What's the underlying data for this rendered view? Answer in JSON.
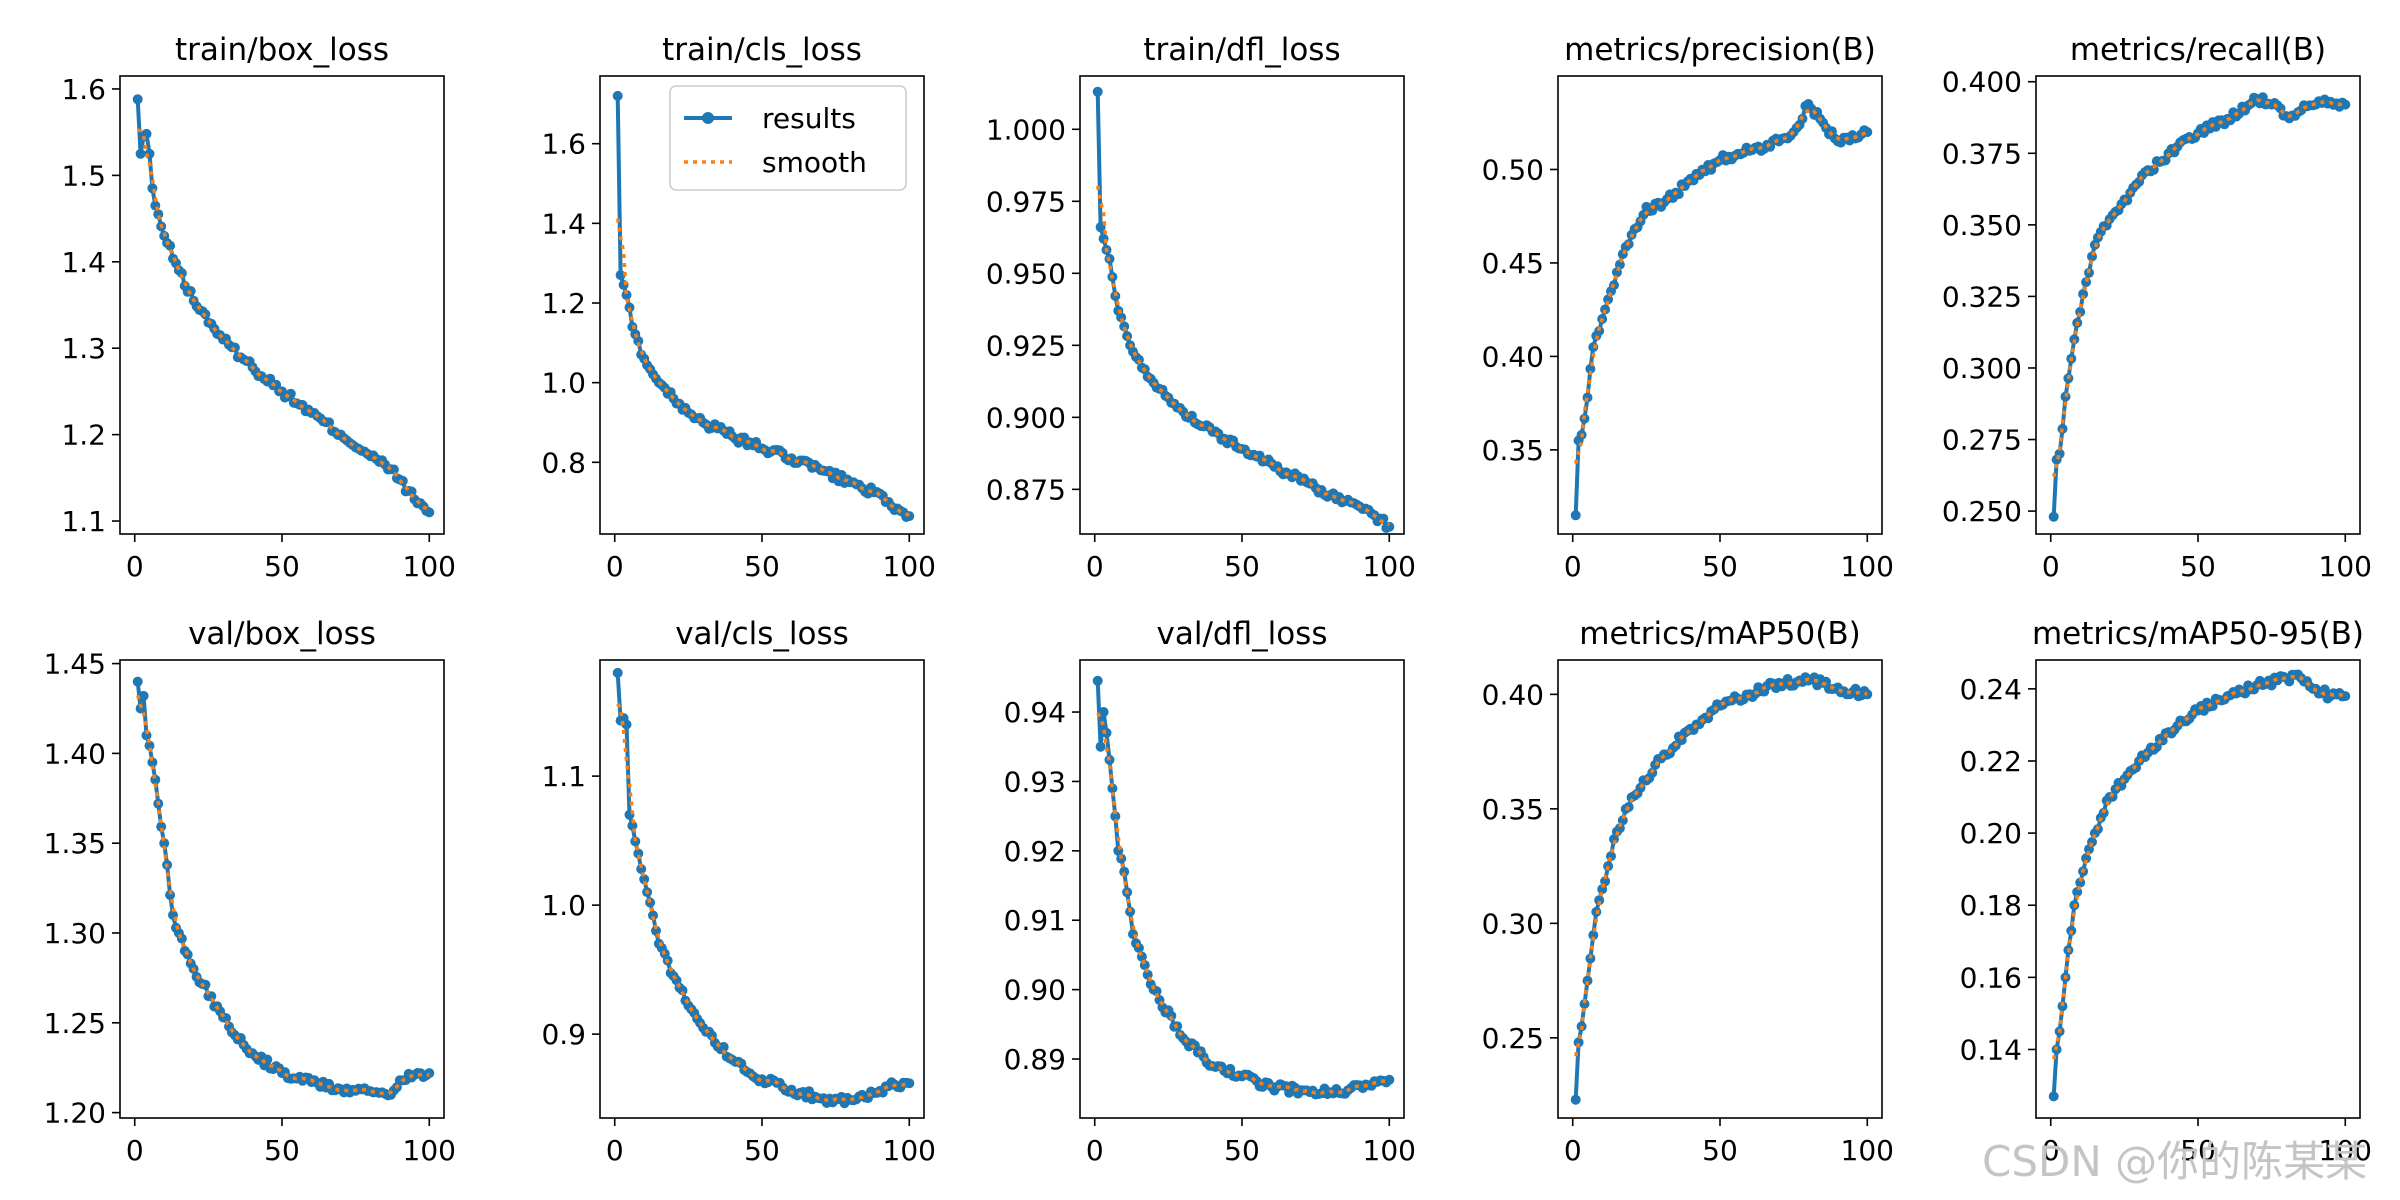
{
  "watermark": "CSDN @你的陈某某",
  "legend": {
    "results_label": "results",
    "smooth_label": "smooth"
  },
  "colors": {
    "results": "#1f77b4",
    "smooth": "#ff7f0e",
    "axis": "#000000"
  },
  "chart_data": [
    {
      "type": "line",
      "title": "train/box_loss",
      "xlim": [
        -5,
        105
      ],
      "ylim": [
        1.085,
        1.615
      ],
      "xticks": [
        0,
        50,
        100
      ],
      "yticks": [
        1.1,
        1.2,
        1.3,
        1.4,
        1.5,
        1.6
      ],
      "ytick_labels": [
        "1.1",
        "1.2",
        "1.3",
        "1.4",
        "1.5",
        "1.6"
      ],
      "legend": false,
      "series": [
        {
          "name": "results",
          "anchors": [
            [
              1,
              1.588
            ],
            [
              2,
              1.525
            ],
            [
              3,
              1.545
            ],
            [
              4,
              1.548
            ],
            [
              5,
              1.525
            ],
            [
              6,
              1.485
            ],
            [
              7,
              1.465
            ],
            [
              10,
              1.43
            ],
            [
              15,
              1.39
            ],
            [
              20,
              1.355
            ],
            [
              30,
              1.31
            ],
            [
              40,
              1.278
            ],
            [
              50,
              1.25
            ],
            [
              60,
              1.225
            ],
            [
              70,
              1.2
            ],
            [
              80,
              1.175
            ],
            [
              87,
              1.16
            ],
            [
              90,
              1.148
            ],
            [
              95,
              1.125
            ],
            [
              100,
              1.11
            ]
          ]
        }
      ]
    },
    {
      "type": "line",
      "title": "train/cls_loss",
      "xlim": [
        -5,
        105
      ],
      "ylim": [
        0.62,
        1.77
      ],
      "xticks": [
        0,
        50,
        100
      ],
      "yticks": [
        0.8,
        1.0,
        1.2,
        1.4,
        1.6
      ],
      "ytick_labels": [
        "0.8",
        "1.0",
        "1.2",
        "1.4",
        "1.6"
      ],
      "legend": true,
      "series": [
        {
          "name": "results",
          "anchors": [
            [
              1,
              1.72
            ],
            [
              2,
              1.27
            ],
            [
              4,
              1.22
            ],
            [
              6,
              1.14
            ],
            [
              10,
              1.06
            ],
            [
              15,
              1.0
            ],
            [
              20,
              0.96
            ],
            [
              30,
              0.9
            ],
            [
              40,
              0.865
            ],
            [
              50,
              0.835
            ],
            [
              60,
              0.81
            ],
            [
              70,
              0.78
            ],
            [
              80,
              0.75
            ],
            [
              88,
              0.725
            ],
            [
              92,
              0.7
            ],
            [
              95,
              0.68
            ],
            [
              100,
              0.665
            ]
          ]
        }
      ]
    },
    {
      "type": "line",
      "title": "train/dfl_loss",
      "xlim": [
        -5,
        105
      ],
      "ylim": [
        0.8595,
        1.0185
      ],
      "xticks": [
        0,
        50,
        100
      ],
      "yticks": [
        0.875,
        0.9,
        0.925,
        0.95,
        0.975,
        1.0
      ],
      "ytick_labels": [
        "0.875",
        "0.900",
        "0.925",
        "0.950",
        "0.975",
        "1.000"
      ],
      "legend": false,
      "series": [
        {
          "name": "results",
          "anchors": [
            [
              1,
              1.013
            ],
            [
              2,
              0.966
            ],
            [
              3,
              0.962
            ],
            [
              5,
              0.955
            ],
            [
              8,
              0.937
            ],
            [
              12,
              0.925
            ],
            [
              15,
              0.92
            ],
            [
              20,
              0.912
            ],
            [
              30,
              0.902
            ],
            [
              40,
              0.895
            ],
            [
              50,
              0.889
            ],
            [
              60,
              0.884
            ],
            [
              70,
              0.878
            ],
            [
              80,
              0.873
            ],
            [
              90,
              0.869
            ],
            [
              95,
              0.866
            ],
            [
              100,
              0.862
            ]
          ]
        }
      ]
    },
    {
      "type": "line",
      "title": "metrics/precision(B)",
      "xlim": [
        -5,
        105
      ],
      "ylim": [
        0.305,
        0.55
      ],
      "xticks": [
        0,
        50,
        100
      ],
      "yticks": [
        0.35,
        0.4,
        0.45,
        0.5
      ],
      "ytick_labels": [
        "0.35",
        "0.40",
        "0.45",
        "0.50"
      ],
      "legend": false,
      "series": [
        {
          "name": "results",
          "anchors": [
            [
              1,
              0.315
            ],
            [
              2,
              0.355
            ],
            [
              3,
              0.358
            ],
            [
              5,
              0.378
            ],
            [
              7,
              0.405
            ],
            [
              10,
              0.42
            ],
            [
              15,
              0.445
            ],
            [
              20,
              0.465
            ],
            [
              25,
              0.48
            ],
            [
              30,
              0.48
            ],
            [
              40,
              0.495
            ],
            [
              50,
              0.505
            ],
            [
              60,
              0.51
            ],
            [
              70,
              0.515
            ],
            [
              75,
              0.52
            ],
            [
              80,
              0.535
            ],
            [
              85,
              0.525
            ],
            [
              90,
              0.515
            ],
            [
              100,
              0.52
            ]
          ]
        }
      ]
    },
    {
      "type": "line",
      "title": "metrics/recall(B)",
      "xlim": [
        -5,
        105
      ],
      "ylim": [
        0.242,
        0.402
      ],
      "xticks": [
        0,
        50,
        100
      ],
      "yticks": [
        0.25,
        0.275,
        0.3,
        0.325,
        0.35,
        0.375,
        0.4
      ],
      "ytick_labels": [
        "0.250",
        "0.275",
        "0.300",
        "0.325",
        "0.350",
        "0.375",
        "0.400"
      ],
      "legend": false,
      "series": [
        {
          "name": "results",
          "anchors": [
            [
              1,
              0.248
            ],
            [
              2,
              0.268
            ],
            [
              3,
              0.27
            ],
            [
              5,
              0.29
            ],
            [
              8,
              0.31
            ],
            [
              12,
              0.33
            ],
            [
              15,
              0.343
            ],
            [
              20,
              0.352
            ],
            [
              30,
              0.365
            ],
            [
              40,
              0.375
            ],
            [
              50,
              0.382
            ],
            [
              60,
              0.387
            ],
            [
              70,
              0.394
            ],
            [
              75,
              0.392
            ],
            [
              80,
              0.388
            ],
            [
              85,
              0.39
            ],
            [
              90,
              0.392
            ],
            [
              95,
              0.393
            ],
            [
              100,
              0.392
            ]
          ]
        }
      ]
    },
    {
      "type": "line",
      "title": "val/box_loss",
      "xlim": [
        -5,
        105
      ],
      "ylim": [
        1.197,
        1.452
      ],
      "xticks": [
        0,
        50,
        100
      ],
      "yticks": [
        1.2,
        1.25,
        1.3,
        1.35,
        1.4,
        1.45
      ],
      "ytick_labels": [
        "1.20",
        "1.25",
        "1.30",
        "1.35",
        "1.40",
        "1.45"
      ],
      "legend": false,
      "series": [
        {
          "name": "results",
          "anchors": [
            [
              1,
              1.44
            ],
            [
              2,
              1.425
            ],
            [
              3,
              1.432
            ],
            [
              4,
              1.41
            ],
            [
              6,
              1.395
            ],
            [
              8,
              1.372
            ],
            [
              10,
              1.35
            ],
            [
              13,
              1.31
            ],
            [
              15,
              1.3
            ],
            [
              20,
              1.28
            ],
            [
              30,
              1.253
            ],
            [
              40,
              1.233
            ],
            [
              50,
              1.222
            ],
            [
              60,
              1.217
            ],
            [
              70,
              1.213
            ],
            [
              80,
              1.212
            ],
            [
              87,
              1.21
            ],
            [
              90,
              1.218
            ],
            [
              95,
              1.221
            ],
            [
              100,
              1.222
            ]
          ]
        }
      ]
    },
    {
      "type": "line",
      "title": "val/cls_loss",
      "xlim": [
        -5,
        105
      ],
      "ylim": [
        0.835,
        1.19
      ],
      "xticks": [
        0,
        50,
        100
      ],
      "yticks": [
        0.9,
        1.0,
        1.1
      ],
      "ytick_labels": [
        "0.9",
        "1.0",
        "1.1"
      ],
      "legend": false,
      "series": [
        {
          "name": "results",
          "anchors": [
            [
              1,
              1.18
            ],
            [
              2,
              1.143
            ],
            [
              3,
              1.145
            ],
            [
              4,
              1.14
            ],
            [
              5,
              1.07
            ],
            [
              8,
              1.04
            ],
            [
              10,
              1.02
            ],
            [
              15,
              0.97
            ],
            [
              20,
              0.945
            ],
            [
              30,
              0.905
            ],
            [
              40,
              0.88
            ],
            [
              50,
              0.865
            ],
            [
              60,
              0.857
            ],
            [
              70,
              0.85
            ],
            [
              80,
              0.849
            ],
            [
              85,
              0.851
            ],
            [
              90,
              0.856
            ],
            [
              95,
              0.861
            ],
            [
              100,
              0.862
            ]
          ]
        }
      ]
    },
    {
      "type": "line",
      "title": "val/dfl_loss",
      "xlim": [
        -5,
        105
      ],
      "ylim": [
        0.8815,
        0.9475
      ],
      "xticks": [
        0,
        50,
        100
      ],
      "yticks": [
        0.89,
        0.9,
        0.91,
        0.92,
        0.93,
        0.94
      ],
      "ytick_labels": [
        "0.89",
        "0.90",
        "0.91",
        "0.92",
        "0.93",
        "0.94"
      ],
      "legend": false,
      "series": [
        {
          "name": "results",
          "anchors": [
            [
              1,
              0.9445
            ],
            [
              2,
              0.935
            ],
            [
              3,
              0.94
            ],
            [
              4,
              0.937
            ],
            [
              6,
              0.929
            ],
            [
              8,
              0.92
            ],
            [
              10,
              0.917
            ],
            [
              13,
              0.908
            ],
            [
              15,
              0.906
            ],
            [
              20,
              0.9
            ],
            [
              30,
              0.893
            ],
            [
              40,
              0.889
            ],
            [
              50,
              0.8875
            ],
            [
              60,
              0.886
            ],
            [
              70,
              0.8855
            ],
            [
              80,
              0.8852
            ],
            [
              85,
              0.885
            ],
            [
              90,
              0.8862
            ],
            [
              95,
              0.8868
            ],
            [
              100,
              0.887
            ]
          ]
        }
      ]
    },
    {
      "type": "line",
      "title": "metrics/mAP50(B)",
      "xlim": [
        -5,
        105
      ],
      "ylim": [
        0.215,
        0.415
      ],
      "xticks": [
        0,
        50,
        100
      ],
      "yticks": [
        0.25,
        0.3,
        0.35,
        0.4
      ],
      "ytick_labels": [
        "0.25",
        "0.30",
        "0.35",
        "0.40"
      ],
      "legend": false,
      "series": [
        {
          "name": "results",
          "anchors": [
            [
              1,
              0.223
            ],
            [
              2,
              0.248
            ],
            [
              3,
              0.255
            ],
            [
              5,
              0.275
            ],
            [
              8,
              0.305
            ],
            [
              12,
              0.325
            ],
            [
              15,
              0.34
            ],
            [
              20,
              0.355
            ],
            [
              30,
              0.372
            ],
            [
              40,
              0.385
            ],
            [
              50,
              0.395
            ],
            [
              60,
              0.4
            ],
            [
              70,
              0.405
            ],
            [
              80,
              0.406
            ],
            [
              85,
              0.405
            ],
            [
              90,
              0.403
            ],
            [
              95,
              0.401
            ],
            [
              100,
              0.4
            ]
          ]
        }
      ]
    },
    {
      "type": "line",
      "title": "metrics/mAP50-95(B)",
      "xlim": [
        -5,
        105
      ],
      "ylim": [
        0.121,
        0.248
      ],
      "xticks": [
        0,
        50,
        100
      ],
      "yticks": [
        0.14,
        0.16,
        0.18,
        0.2,
        0.22,
        0.24
      ],
      "ytick_labels": [
        "0.14",
        "0.16",
        "0.18",
        "0.20",
        "0.22",
        "0.24"
      ],
      "legend": false,
      "series": [
        {
          "name": "results",
          "anchors": [
            [
              1,
              0.127
            ],
            [
              2,
              0.14
            ],
            [
              3,
              0.145
            ],
            [
              5,
              0.16
            ],
            [
              8,
              0.18
            ],
            [
              12,
              0.193
            ],
            [
              15,
              0.2
            ],
            [
              20,
              0.21
            ],
            [
              30,
              0.22
            ],
            [
              40,
              0.228
            ],
            [
              50,
              0.234
            ],
            [
              60,
              0.238
            ],
            [
              70,
              0.241
            ],
            [
              80,
              0.243
            ],
            [
              85,
              0.243
            ],
            [
              90,
              0.24
            ],
            [
              95,
              0.238
            ],
            [
              100,
              0.238
            ]
          ]
        }
      ]
    }
  ]
}
